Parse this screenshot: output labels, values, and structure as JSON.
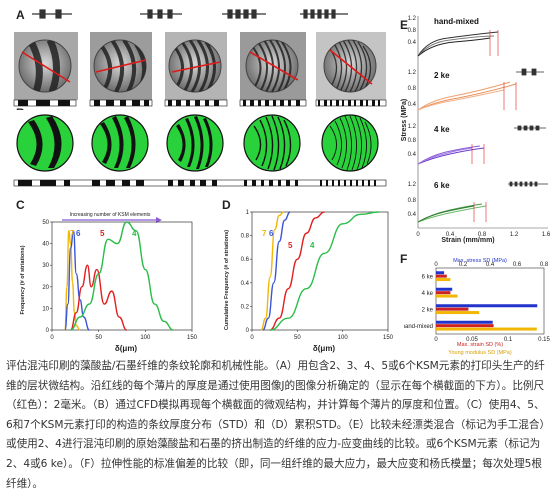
{
  "panels": {
    "A": "A",
    "B": "B",
    "C": "C",
    "D": "D",
    "E": "E",
    "F": "F"
  },
  "panel_C": {
    "top_label": "Increasing number of KSM elements",
    "ylabel": "Frequency\n(# of striations)",
    "xlabel": "δ(μm)",
    "curve_labels": [
      "7",
      "6",
      "5",
      "4"
    ]
  },
  "panel_D": {
    "ylabel": "Cumulative Frequency\n(# of striations)",
    "xlabel": "δ(μm)",
    "curve_labels": [
      "7",
      "6",
      "5",
      "4"
    ]
  },
  "panel_E": {
    "ylabel": "Stress (MPa)",
    "xlabel": "Strain (mm/mm)",
    "subplots": [
      "hand-mixed",
      "2 ke",
      "4 ke",
      "6 ke"
    ]
  },
  "panel_F": {
    "top_axis_label": "Max. stress SD (MPa)",
    "bottom_axis_label1": "Max. strain SD (%)",
    "bottom_axis_label2": "Young modulus SD (MPa)",
    "categories": [
      "6 ke",
      "4 ke",
      "2 ke",
      "hand-mixed"
    ]
  },
  "caption": "评估混沌印刷的藻酸盐/石墨纤维的条纹轮廓和机械性能。（A）用包含2、3、4、5或6个KSM元素的打印头生产的纤维的层状微结构。沿红线的每个薄片的厚度是通过使用图像J的图像分析确定的（显示在每个横截面的下方）。比例尺（红色）：2毫米。（B）通过CFD模拟再现每个横截面的微观结构，并计算每个薄片的厚度和位置。（C）使用4、5、6和7个KSM元素打印的构造的条纹厚度分布（STD）和（D）累积STD。（E）比较未经漂类混合（标记为手工混合）或使用2、4进行混沌印刷的原始藻酸盐和石墨的挤出制造的纤维的应力-应变曲线的比较。或6个KSM元素（标记为2、4或6 ke）。（F）拉伸性能的标准偏差的比较（即，同一组纤维的最大应力，最大应变和杨氏模量；每次处理5根纤维）。",
  "chart_data": [
    {
      "type": "line",
      "title": "",
      "xlabel": "δ(μm)",
      "ylabel": "Frequency (# of striations)",
      "xlim": [
        0,
        150
      ],
      "ylim": [
        0,
        50
      ],
      "x_ticks": [
        0,
        50,
        100,
        150
      ],
      "y_ticks": [
        0,
        10,
        20,
        30,
        40,
        50
      ],
      "series": [
        {
          "name": "7",
          "color": "#f2b705",
          "x": [
            14,
            16,
            18,
            20,
            22,
            24,
            26,
            30
          ],
          "y": [
            0,
            20,
            46,
            40,
            22,
            8,
            2,
            0
          ]
        },
        {
          "name": "6",
          "color": "#3a55d8",
          "x": [
            14,
            17,
            20,
            23,
            26,
            30,
            34,
            40
          ],
          "y": [
            0,
            12,
            38,
            46,
            26,
            14,
            6,
            0
          ]
        },
        {
          "name": "5",
          "color": "#e02020",
          "x": [
            20,
            26,
            32,
            38,
            42,
            48,
            56,
            64,
            72,
            80
          ],
          "y": [
            0,
            8,
            20,
            30,
            20,
            28,
            12,
            18,
            6,
            0
          ]
        },
        {
          "name": "4",
          "color": "#2bbd4a",
          "x": [
            20,
            30,
            40,
            50,
            60,
            70,
            80,
            90,
            100,
            110,
            120,
            130
          ],
          "y": [
            0,
            6,
            12,
            26,
            42,
            40,
            50,
            46,
            28,
            12,
            4,
            0
          ]
        }
      ]
    },
    {
      "type": "line",
      "title": "",
      "xlabel": "δ(μm)",
      "ylabel": "Cumulative Frequency (# of striations)",
      "xlim": [
        0,
        150
      ],
      "ylim": [
        0,
        1.0
      ],
      "x_ticks": [
        0,
        50,
        100,
        150
      ],
      "y_ticks": [
        0,
        0.2,
        0.4,
        0.6,
        0.8,
        1.0
      ],
      "series": [
        {
          "name": "7",
          "color": "#f2b705",
          "x": [
            10,
            15,
            20,
            25,
            30,
            35
          ],
          "y": [
            0,
            0.1,
            0.45,
            0.85,
            0.97,
            1.0
          ]
        },
        {
          "name": "6",
          "color": "#3a55d8",
          "x": [
            12,
            18,
            24,
            30,
            36,
            42
          ],
          "y": [
            0,
            0.1,
            0.4,
            0.75,
            0.93,
            1.0
          ]
        },
        {
          "name": "5",
          "color": "#e02020",
          "x": [
            20,
            30,
            40,
            50,
            60,
            70,
            80
          ],
          "y": [
            0,
            0.1,
            0.35,
            0.6,
            0.82,
            0.95,
            1.0
          ]
        },
        {
          "name": "4",
          "color": "#2bbd4a",
          "x": [
            20,
            40,
            60,
            80,
            100,
            120,
            140
          ],
          "y": [
            0,
            0.1,
            0.35,
            0.65,
            0.9,
            0.98,
            1.0
          ]
        }
      ]
    },
    {
      "type": "bar",
      "title": "",
      "orientation": "horizontal",
      "categories": [
        "6 ke",
        "4 ke",
        "2 ke",
        "hand-mixed"
      ],
      "top_axis": {
        "label": "Max. stress SD (MPa)",
        "ticks": [
          0,
          0.2,
          0.4,
          0.6,
          0.8
        ]
      },
      "bottom_axis": {
        "ticks": [
          0,
          0.05,
          0.1,
          0.15
        ]
      },
      "series": [
        {
          "name": "Max. stress SD (MPa)",
          "color": "#2233cc",
          "values": [
            0.06,
            0.12,
            0.75,
            0.42
          ]
        },
        {
          "name": "Max. strain SD (%)",
          "color": "#cc2222",
          "values": [
            0.015,
            0.02,
            0.045,
            0.08
          ]
        },
        {
          "name": "Young modulus SD (MPa)",
          "color": "#f2b705",
          "values": [
            0.02,
            0.03,
            0.06,
            0.14
          ]
        }
      ]
    }
  ]
}
